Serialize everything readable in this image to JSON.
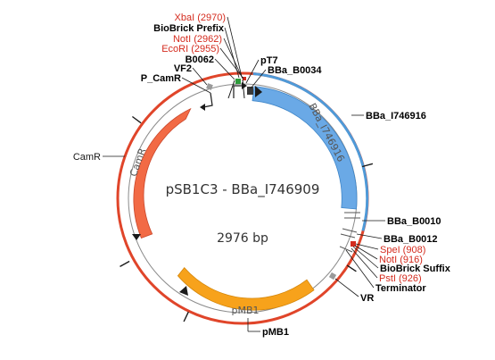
{
  "plasmid": {
    "name": "pSB1C3 - BBa_I746909",
    "size_label": "2976 bp"
  },
  "features": {
    "camr": "CamR",
    "pmb1": "pMB1",
    "insert": "BBa_I746916"
  },
  "labels": {
    "xbai": "XbaI (2970)",
    "biobrick_prefix": "BioBrick Prefix",
    "noti_2962": "NotI (2962)",
    "ecori": "EcoRI (2955)",
    "b0062": "B0062",
    "vf2": "VF2",
    "p_camr": "P_CamR",
    "pt7": "pT7",
    "b0034": "BBa_B0034",
    "i746916": "BBa_I746916",
    "camr": "CamR",
    "b0010": "BBa_B0010",
    "b0012": "BBa_B0012",
    "spei": "SpeI (908)",
    "noti_916": "NotI (916)",
    "biobrick_suffix": "BioBrick Suffix",
    "psti": "PstI (926)",
    "terminator": "Terminator",
    "vr": "VR",
    "pmb1": "pMB1"
  },
  "colors": {
    "backbone_red": "#e0452a",
    "insert_blue": "#4f9ad8",
    "insert_fill": "#6aa9e6",
    "camr_fill": "#f26a45",
    "pmb1_fill": "#f7a21b",
    "site_red": "#d42b1e",
    "feature_green": "#2e9b3b"
  }
}
